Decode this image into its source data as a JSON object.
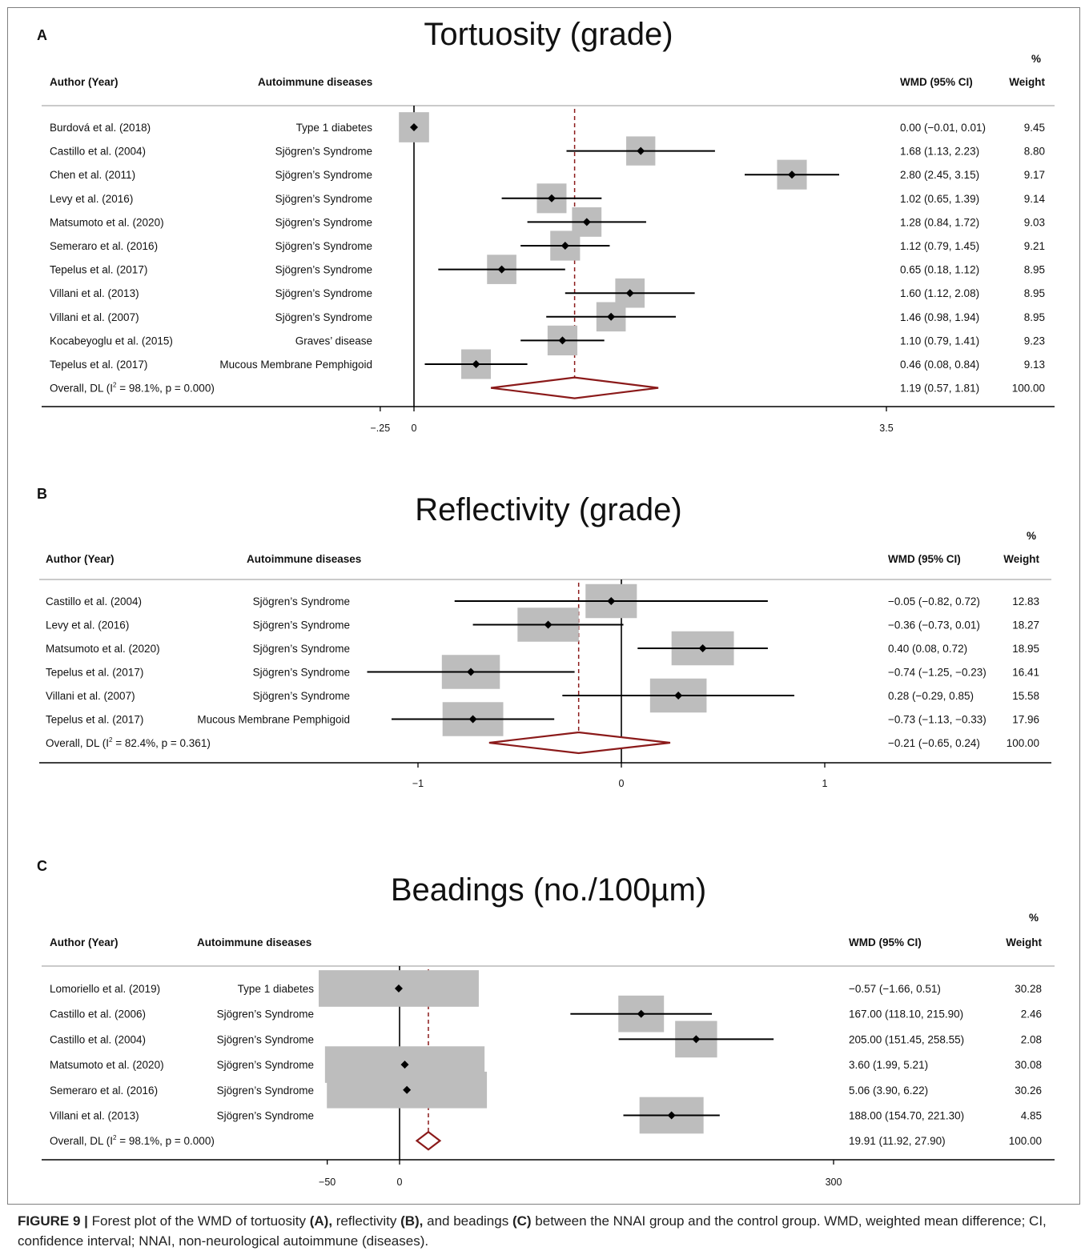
{
  "caption": {
    "label": "FIGURE 9 |",
    "parts": [
      {
        "t": " Forest plot of the WMD of tortuosity ",
        "b": false
      },
      {
        "t": "(A),",
        "b": true
      },
      {
        "t": " reflectivity ",
        "b": false
      },
      {
        "t": "(B),",
        "b": true
      },
      {
        "t": " and beadings ",
        "b": false
      },
      {
        "t": "(C)",
        "b": true
      },
      {
        "t": " between the NNAI group and the control group. WMD, weighted mean difference; CI, confidence interval; NNAI, non-neurological autoimmune (diseases).",
        "b": false
      }
    ]
  },
  "colors": {
    "diamond": "#8b1a1a",
    "dash": "#8b1a1a",
    "box": "#bdbdbd",
    "line": "#000000"
  },
  "chart_data": [
    {
      "type": "forest",
      "panel_letter": "A",
      "title": "Tortuosity (grade)",
      "col_author": "Author (Year)",
      "col_disease": "Autoimmune diseases",
      "col_wmd": "WMD (95% CI)",
      "col_weight_pct": "%",
      "col_weight": "Weight",
      "xticks": [
        {
          "v": -0.25,
          "label": "−.25"
        },
        {
          "v": 0,
          "label": "0"
        },
        {
          "v": 3.5,
          "label": "3.5"
        }
      ],
      "studies": [
        {
          "author": "Burdová et al. (2018)",
          "disease": "Type 1 diabetes",
          "est": 0.0,
          "lo": -0.01,
          "hi": 0.01,
          "wmd_text": "0.00 (−0.01, 0.01)",
          "weight": "9.45"
        },
        {
          "author": "Castillo et al. (2004)",
          "disease": "Sjögren’s Syndrome",
          "est": 1.68,
          "lo": 1.13,
          "hi": 2.23,
          "wmd_text": "1.68 (1.13, 2.23)",
          "weight": "8.80"
        },
        {
          "author": "Chen et al. (2011)",
          "disease": "Sjögren’s Syndrome",
          "est": 2.8,
          "lo": 2.45,
          "hi": 3.15,
          "wmd_text": "2.80 (2.45, 3.15)",
          "weight": "9.17"
        },
        {
          "author": "Levy et al. (2016)",
          "disease": "Sjögren’s Syndrome",
          "est": 1.02,
          "lo": 0.65,
          "hi": 1.39,
          "wmd_text": "1.02 (0.65, 1.39)",
          "weight": "9.14"
        },
        {
          "author": "Matsumoto et al. (2020)",
          "disease": "Sjögren’s Syndrome",
          "est": 1.28,
          "lo": 0.84,
          "hi": 1.72,
          "wmd_text": "1.28 (0.84, 1.72)",
          "weight": "9.03"
        },
        {
          "author": "Semeraro et al. (2016)",
          "disease": "Sjögren’s Syndrome",
          "est": 1.12,
          "lo": 0.79,
          "hi": 1.45,
          "wmd_text": "1.12 (0.79, 1.45)",
          "weight": "9.21"
        },
        {
          "author": "Tepelus et al. (2017)",
          "disease": "Sjögren’s Syndrome",
          "est": 0.65,
          "lo": 0.18,
          "hi": 1.12,
          "wmd_text": "0.65 (0.18, 1.12)",
          "weight": "8.95"
        },
        {
          "author": "Villani et al. (2013)",
          "disease": "Sjögren’s Syndrome",
          "est": 1.6,
          "lo": 1.12,
          "hi": 2.08,
          "wmd_text": "1.60 (1.12, 2.08)",
          "weight": "8.95"
        },
        {
          "author": "Villani et al. (2007)",
          "disease": "Sjögren’s Syndrome",
          "est": 1.46,
          "lo": 0.98,
          "hi": 1.94,
          "wmd_text": "1.46 (0.98, 1.94)",
          "weight": "8.95"
        },
        {
          "author": "Kocabeyoglu et al. (2015)",
          "disease": "Graves’ disease",
          "est": 1.1,
          "lo": 0.79,
          "hi": 1.41,
          "wmd_text": "1.10 (0.79, 1.41)",
          "weight": "9.23"
        },
        {
          "author": "Tepelus et al. (2017)",
          "disease": "Mucous Membrane Pemphigoid",
          "est": 0.46,
          "lo": 0.08,
          "hi": 0.84,
          "wmd_text": "0.46 (0.08, 0.84)",
          "weight": "9.13"
        }
      ],
      "overall": {
        "label": "Overall, DL (I",
        "sup": "2",
        "label_rest": " = 98.1%, p = 0.000)",
        "est": 1.19,
        "lo": 0.57,
        "hi": 1.81,
        "wmd_text": "1.19 (0.57, 1.81)",
        "weight": "100.00"
      }
    },
    {
      "type": "forest",
      "panel_letter": "B",
      "title": "Reflectivity (grade)",
      "col_author": "Author (Year)",
      "col_disease": "Autoimmune diseases",
      "col_wmd": "WMD (95% CI)",
      "col_weight_pct": "%",
      "col_weight": "Weight",
      "xticks": [
        {
          "v": -1,
          "label": "−1"
        },
        {
          "v": 0,
          "label": "0"
        },
        {
          "v": 1,
          "label": "1"
        }
      ],
      "studies": [
        {
          "author": "Castillo et al.  (2004)",
          "disease": "Sjögren’s Syndrome",
          "est": -0.05,
          "lo": -0.82,
          "hi": 0.72,
          "wmd_text": "−0.05 (−0.82, 0.72)",
          "weight": "12.83"
        },
        {
          "author": "Levy et al.  (2016)",
          "disease": "Sjögren’s Syndrome",
          "est": -0.36,
          "lo": -0.73,
          "hi": 0.01,
          "wmd_text": "−0.36 (−0.73, 0.01)",
          "weight": "18.27"
        },
        {
          "author": "Matsumoto et al.  (2020)",
          "disease": "Sjögren’s Syndrome",
          "est": 0.4,
          "lo": 0.08,
          "hi": 0.72,
          "wmd_text": "0.40 (0.08, 0.72)",
          "weight": "18.95"
        },
        {
          "author": "Tepelus et al.  (2017)",
          "disease": "Sjögren’s Syndrome",
          "est": -0.74,
          "lo": -1.25,
          "hi": -0.23,
          "wmd_text": "−0.74 (−1.25, −0.23)",
          "weight": "16.41"
        },
        {
          "author": "Villani et al.  (2007)",
          "disease": "Sjögren’s Syndrome",
          "est": 0.28,
          "lo": -0.29,
          "hi": 0.85,
          "wmd_text": "0.28 (−0.29, 0.85)",
          "weight": "15.58"
        },
        {
          "author": "Tepelus et al. (2017)",
          "disease": "Mucous Membrane Pemphigoid",
          "est": -0.73,
          "lo": -1.13,
          "hi": -0.33,
          "wmd_text": "−0.73 (−1.13, −0.33)",
          "weight": "17.96"
        }
      ],
      "overall": {
        "label": "Overall, DL (I",
        "sup": "2",
        "label_rest": " = 82.4%, p = 0.361)",
        "est": -0.21,
        "lo": -0.65,
        "hi": 0.24,
        "wmd_text": "−0.21 (−0.65, 0.24)",
        "weight": "100.00"
      }
    },
    {
      "type": "forest",
      "panel_letter": "C",
      "title": "Beadings (no./100µm)",
      "col_author": "Author (Year)",
      "col_disease": "Autoimmune diseases",
      "col_wmd": "WMD (95% CI)",
      "col_weight_pct": "%",
      "col_weight": "Weight",
      "xticks": [
        {
          "v": -50,
          "label": "−50"
        },
        {
          "v": 0,
          "label": "0"
        },
        {
          "v": 300,
          "label": "300"
        }
      ],
      "studies": [
        {
          "author": "Lomoriello et al. (2019)",
          "disease": "Type 1 diabetes",
          "est": -0.57,
          "lo": -1.66,
          "hi": 0.51,
          "wmd_text": "−0.57 (−1.66, 0.51)",
          "weight": "30.28"
        },
        {
          "author": "Castillo et al. (2006)",
          "disease": "Sjögren’s Syndrome",
          "est": 167.0,
          "lo": 118.1,
          "hi": 215.9,
          "wmd_text": "167.00 (118.10, 215.90)",
          "weight": "2.46"
        },
        {
          "author": "Castillo et al. (2004)",
          "disease": "Sjögren’s Syndrome",
          "est": 205.0,
          "lo": 151.45,
          "hi": 258.55,
          "wmd_text": "205.00 (151.45, 258.55)",
          "weight": "2.08"
        },
        {
          "author": "Matsumoto et al. (2020)",
          "disease": "Sjögren’s Syndrome",
          "est": 3.6,
          "lo": 1.99,
          "hi": 5.21,
          "wmd_text": "3.60 (1.99, 5.21)",
          "weight": "30.08"
        },
        {
          "author": "Semeraro et al. (2016)",
          "disease": "Sjögren’s Syndrome",
          "est": 5.06,
          "lo": 3.9,
          "hi": 6.22,
          "wmd_text": "5.06 (3.90, 6.22)",
          "weight": "30.26"
        },
        {
          "author": "Villani et al. (2013)",
          "disease": "Sjögren’s Syndrome",
          "est": 188.0,
          "lo": 154.7,
          "hi": 221.3,
          "wmd_text": "188.00 (154.70, 221.30)",
          "weight": "4.85"
        }
      ],
      "overall": {
        "label": "Overall, DL (I",
        "sup": "2",
        "label_rest": " = 98.1%, p = 0.000)",
        "est": 19.91,
        "lo": 11.92,
        "hi": 27.9,
        "wmd_text": "19.91 (11.92, 27.90)",
        "weight": "100.00"
      }
    }
  ]
}
